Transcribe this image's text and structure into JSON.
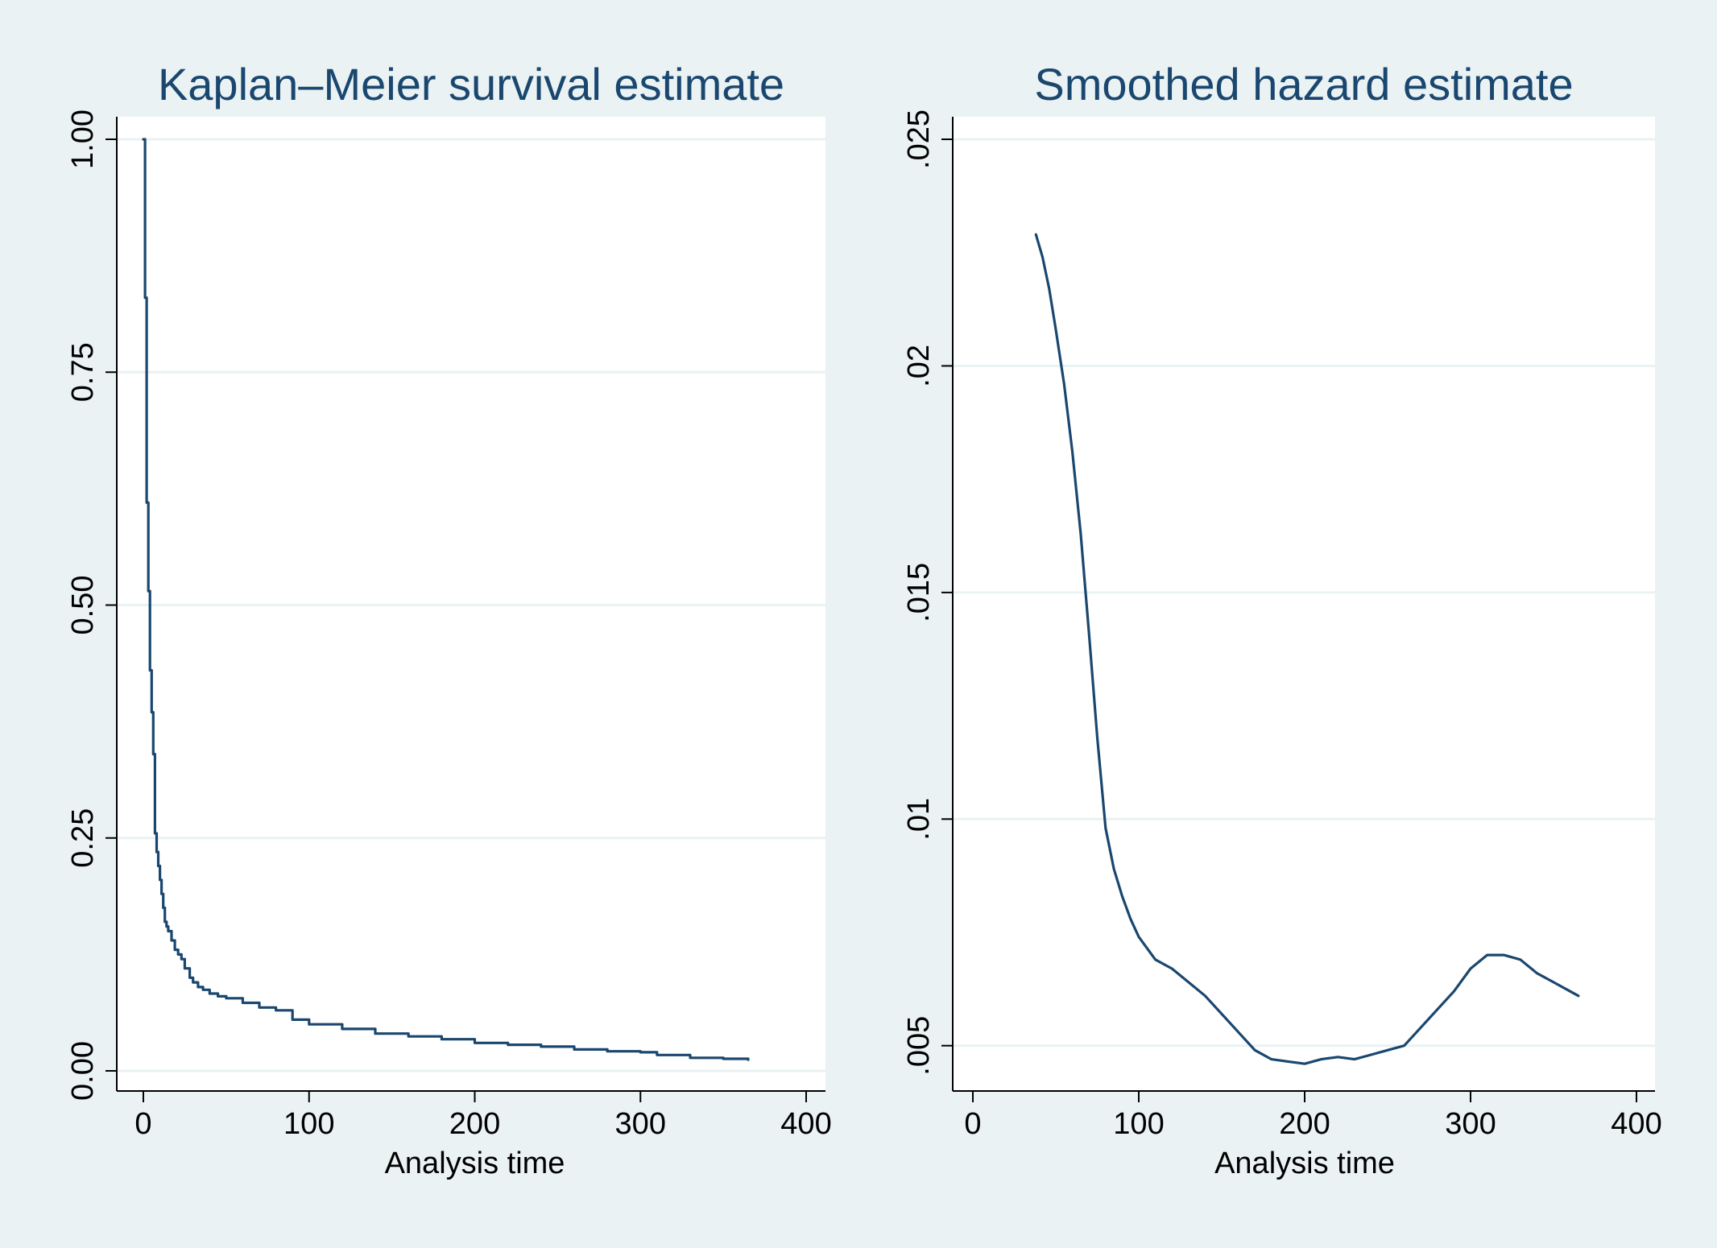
{
  "chart_data": [
    {
      "type": "line",
      "title": "Kaplan–Meier survival estimate",
      "xlabel": "Analysis time",
      "ylabel": "",
      "xlim": [
        0,
        400
      ],
      "ylim": [
        0,
        1
      ],
      "x_ticks": [
        0,
        100,
        200,
        300,
        400
      ],
      "x_tick_labels": [
        "0",
        "100",
        "200",
        "300",
        "400"
      ],
      "y_ticks": [
        0,
        0.25,
        0.5,
        0.75,
        1
      ],
      "y_tick_labels": [
        "0.00",
        "0.25",
        "0.50",
        "0.75",
        "1.00"
      ],
      "grid": true,
      "step": true,
      "series": [
        {
          "x": [
            0,
            1,
            2,
            3,
            4,
            5,
            6,
            7,
            8,
            9,
            10,
            11,
            12,
            13,
            14,
            15,
            17,
            19,
            21,
            23,
            25,
            28,
            30,
            33,
            36,
            40,
            45,
            50,
            60,
            70,
            80,
            90,
            100,
            120,
            140,
            160,
            180,
            200,
            220,
            240,
            260,
            280,
            300,
            310,
            330,
            350,
            365
          ],
          "y": [
            1.0,
            0.83,
            0.61,
            0.515,
            0.43,
            0.385,
            0.34,
            0.255,
            0.235,
            0.22,
            0.205,
            0.19,
            0.175,
            0.16,
            0.155,
            0.15,
            0.14,
            0.13,
            0.125,
            0.12,
            0.11,
            0.1,
            0.095,
            0.09,
            0.087,
            0.083,
            0.08,
            0.078,
            0.073,
            0.068,
            0.065,
            0.055,
            0.05,
            0.045,
            0.04,
            0.037,
            0.034,
            0.03,
            0.028,
            0.026,
            0.023,
            0.021,
            0.02,
            0.017,
            0.014,
            0.013,
            0.012
          ]
        }
      ]
    },
    {
      "type": "line",
      "title": "Smoothed hazard estimate",
      "xlabel": "Analysis time",
      "ylabel": "",
      "xlim": [
        0,
        400
      ],
      "ylim": [
        0.004,
        0.025
      ],
      "x_ticks": [
        0,
        100,
        200,
        300,
        400
      ],
      "x_tick_labels": [
        "0",
        "100",
        "200",
        "300",
        "400"
      ],
      "y_ticks": [
        0.005,
        0.01,
        0.015,
        0.02,
        0.025
      ],
      "y_tick_labels": [
        ".005",
        ".01",
        ".015",
        ".02",
        ".025"
      ],
      "grid": true,
      "step": false,
      "series": [
        {
          "x": [
            38,
            42,
            46,
            50,
            55,
            60,
            65,
            70,
            75,
            80,
            85,
            90,
            95,
            100,
            110,
            120,
            130,
            140,
            150,
            160,
            170,
            180,
            190,
            200,
            210,
            220,
            230,
            240,
            250,
            260,
            270,
            280,
            290,
            300,
            310,
            320,
            330,
            340,
            350,
            360,
            365
          ],
          "y": [
            0.0229,
            0.0224,
            0.0217,
            0.0208,
            0.0196,
            0.0181,
            0.0163,
            0.0141,
            0.0118,
            0.0098,
            0.0089,
            0.0083,
            0.0078,
            0.0074,
            0.0069,
            0.0067,
            0.0064,
            0.0061,
            0.0057,
            0.0053,
            0.0049,
            0.0047,
            0.00465,
            0.0046,
            0.0047,
            0.00475,
            0.0047,
            0.0048,
            0.0049,
            0.005,
            0.0054,
            0.0058,
            0.0062,
            0.0067,
            0.007,
            0.007,
            0.0069,
            0.0066,
            0.0064,
            0.0062,
            0.0061
          ]
        }
      ]
    }
  ],
  "colors": {
    "background": "#eaf2f3",
    "plot_region": "#ffffff",
    "gridline": "#eaf2f3",
    "line": "#1a476f",
    "title": "#1a476f",
    "axis": "#000000"
  }
}
